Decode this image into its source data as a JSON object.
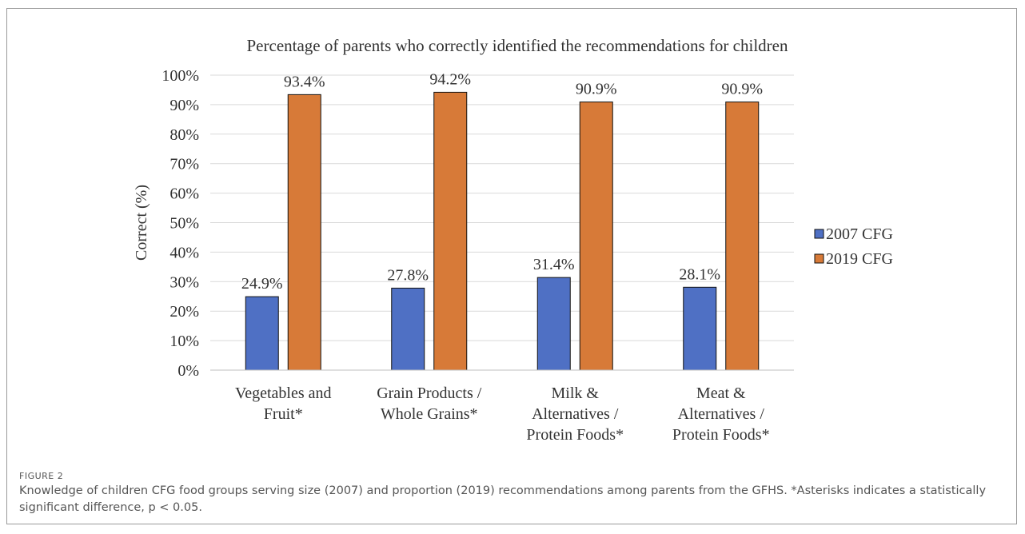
{
  "figure": {
    "label": "FIGURE 2",
    "caption": "Knowledge of children CFG food groups serving size (2007) and proportion (2019) recommendations among parents from the GFHS. *Asterisks indicates a statistically significant difference, p < 0.05."
  },
  "chart_data": {
    "type": "bar",
    "title": "Percentage of parents who correctly identified the recommendations for children",
    "xlabel": "",
    "ylabel": "Correct (%)",
    "ylim": [
      0,
      100
    ],
    "y_tick_step": 10,
    "y_tick_suffix": "%",
    "grid": true,
    "legend_position": "right",
    "categories": [
      [
        "Vegetables and",
        "Fruit*"
      ],
      [
        "Grain Products /",
        "Whole Grains*"
      ],
      [
        "Milk &",
        "Alternatives /",
        "Protein Foods*"
      ],
      [
        "Meat &",
        "Alternatives /",
        "Protein Foods*"
      ]
    ],
    "series": [
      {
        "name": "2007 CFG",
        "color": "#4f70c4",
        "values": [
          24.9,
          27.8,
          31.4,
          28.1
        ],
        "labels": [
          "24.9%",
          "27.8%",
          "31.4%",
          "28.1%"
        ]
      },
      {
        "name": "2019 CFG",
        "color": "#d77a38",
        "values": [
          93.4,
          94.2,
          90.9,
          90.9
        ],
        "labels": [
          "93.4%",
          "94.2%",
          "90.9%",
          "90.9%"
        ]
      }
    ]
  }
}
